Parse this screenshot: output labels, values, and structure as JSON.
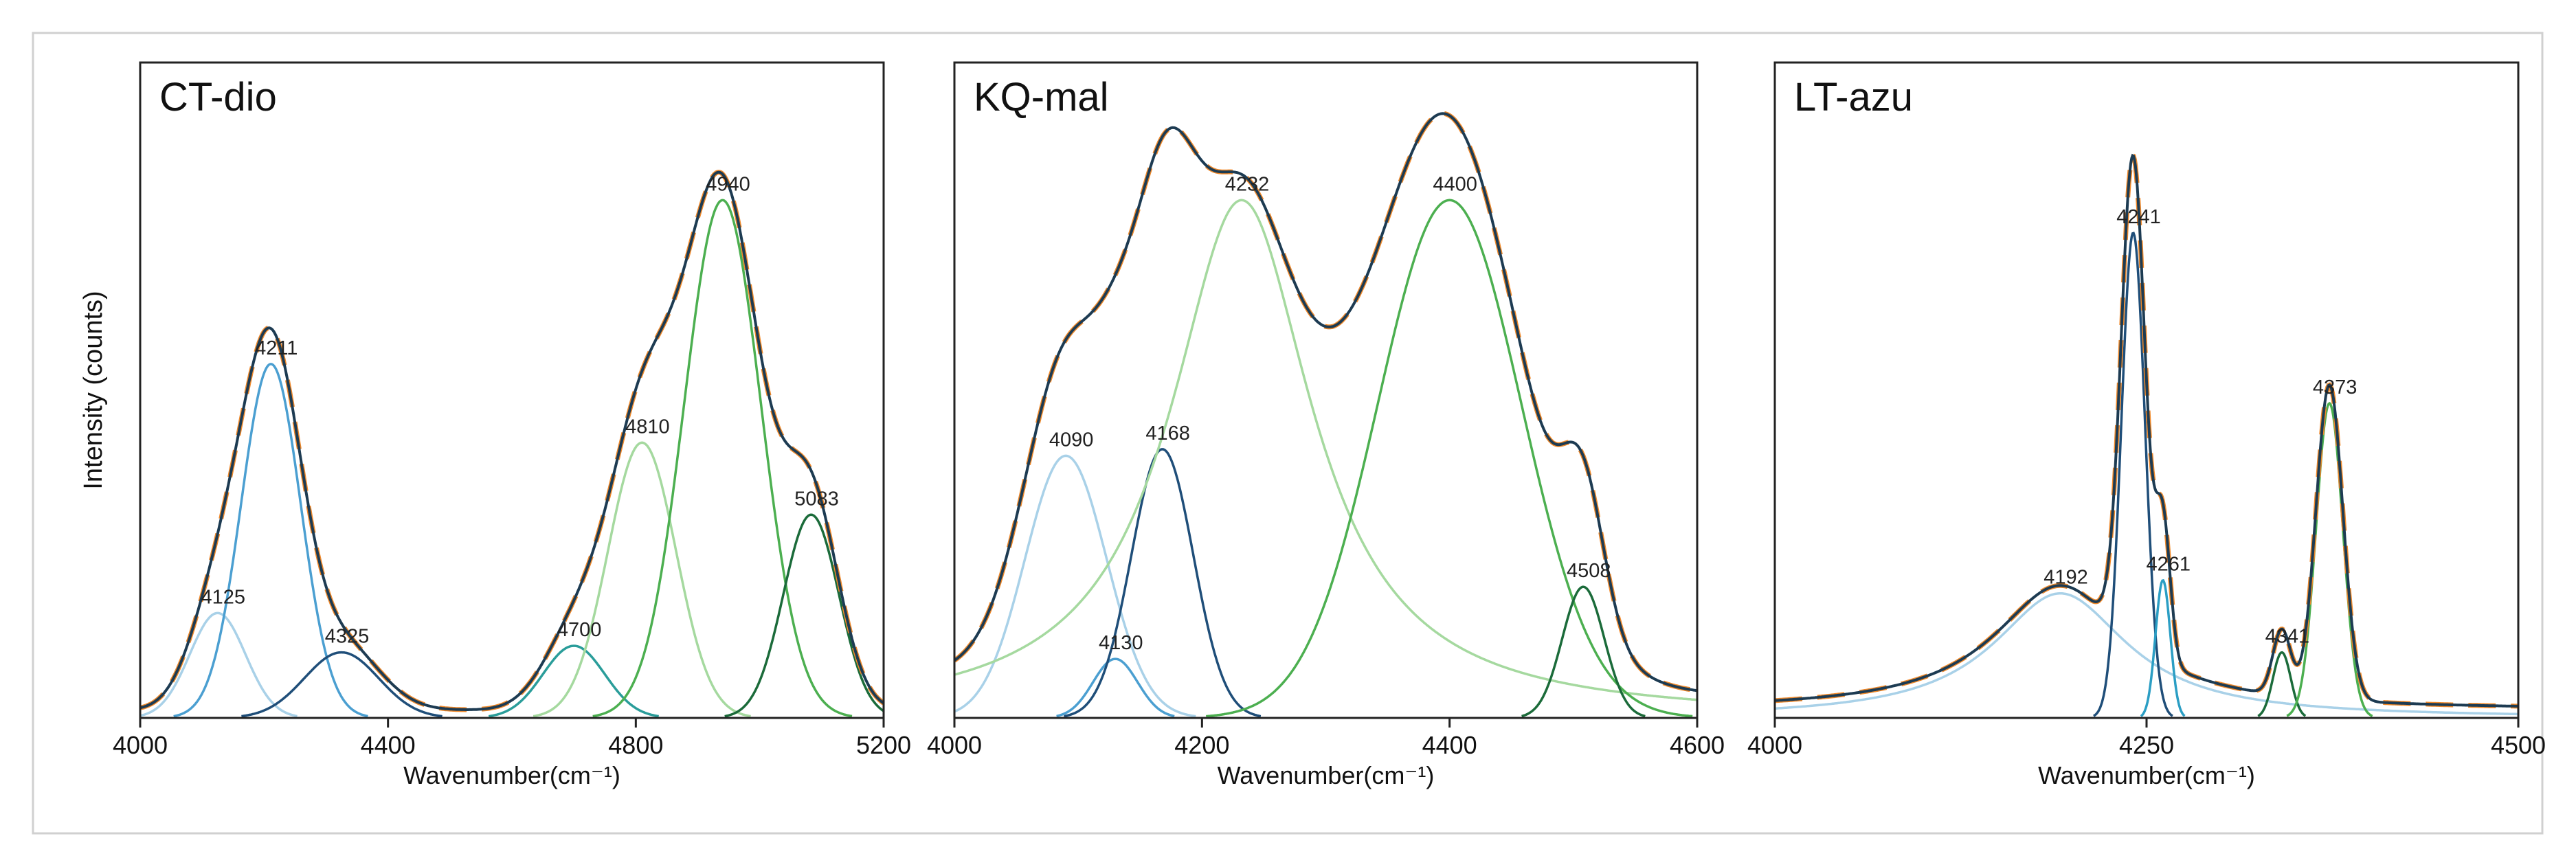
{
  "chart_data": [
    {
      "type": "peak_fit",
      "title": "CT-dio",
      "y_label": "Intensity (counts)",
      "x_label": "Wavenumber(cm⁻¹)",
      "xlim": [
        4000,
        5200
      ],
      "xticks": [
        4000,
        4400,
        4800,
        5200
      ],
      "ylim": [
        0,
        100
      ],
      "envelope_color": "#1d3b52",
      "fit_color": "#f0892a",
      "peaks": [
        {
          "center": 4125,
          "height": 16,
          "width": 45,
          "color": "#a9d1e8"
        },
        {
          "center": 4211,
          "height": 54,
          "width": 48,
          "color": "#4b9fd1"
        },
        {
          "center": 4325,
          "height": 10,
          "width": 60,
          "color": "#1f4e79"
        },
        {
          "center": 4700,
          "height": 11,
          "width": 50,
          "color": "#2a9d9a"
        },
        {
          "center": 4810,
          "height": 42,
          "width": 55,
          "color": "#a5d99f"
        },
        {
          "center": 4940,
          "height": 79,
          "width": 62,
          "color": "#4caf50"
        },
        {
          "center": 5083,
          "height": 31,
          "width": 45,
          "color": "#1b6b3a"
        }
      ]
    },
    {
      "type": "peak_fit",
      "title": "KQ-mal",
      "x_label": "Wavenumber(cm⁻¹)",
      "xlim": [
        4000,
        4600
      ],
      "xticks": [
        4000,
        4200,
        4400,
        4600
      ],
      "ylim": [
        0,
        100
      ],
      "envelope_color": "#1d3b52",
      "fit_color": "#f0892a",
      "peaks": [
        {
          "center": 4090,
          "height": 40,
          "width": 33,
          "color": "#a9d1e8"
        },
        {
          "center": 4130,
          "height": 9,
          "width": 18,
          "color": "#4b9fd1"
        },
        {
          "center": 4168,
          "height": 41,
          "width": 25,
          "color": "#1f4e79"
        },
        {
          "center": 4232,
          "height": 79,
          "width": 70,
          "color": "#a5d99f",
          "profile": "lorentzian"
        },
        {
          "center": 4400,
          "height": 79,
          "width": 58,
          "color": "#4caf50"
        },
        {
          "center": 4508,
          "height": 20,
          "width": 17,
          "color": "#1b6b3a"
        }
      ]
    },
    {
      "type": "peak_fit",
      "title": "LT-azu",
      "x_label": "Wavenumber(cm⁻¹)",
      "xlim": [
        4000,
        4500
      ],
      "xticks": [
        4000,
        4250,
        4500
      ],
      "ylim": [
        0,
        100
      ],
      "envelope_color": "#1d3b52",
      "fit_color": "#f0892a",
      "peaks": [
        {
          "center": 4192,
          "height": 19,
          "width": 55,
          "color": "#a9d1e8",
          "profile": "lorentzian"
        },
        {
          "center": 4241,
          "height": 74,
          "width": 8,
          "color": "#1f4e79"
        },
        {
          "center": 4261,
          "height": 21,
          "width": 5,
          "color": "#2b9ec4"
        },
        {
          "center": 4341,
          "height": 10,
          "width": 6,
          "color": "#1b6b3a"
        },
        {
          "center": 4373,
          "height": 48,
          "width": 9,
          "color": "#4caf50"
        }
      ]
    }
  ]
}
